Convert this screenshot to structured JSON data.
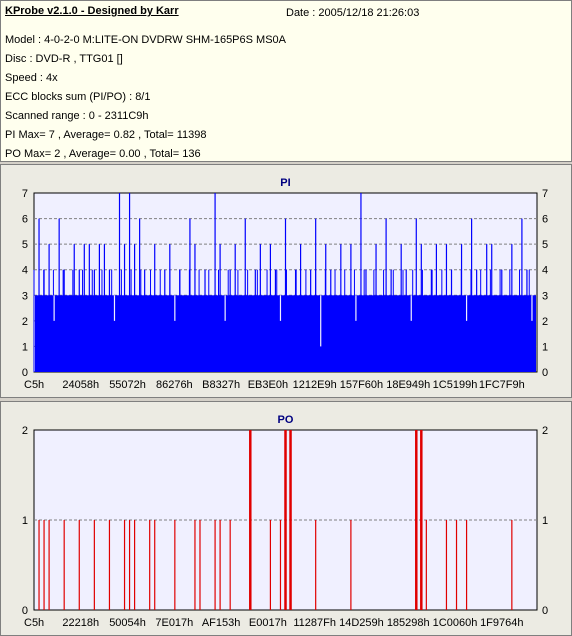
{
  "info": {
    "title": "KProbe v2.1.0 - Designed by Karr",
    "date": "Date : 2005/12/18 21:26:03",
    "lines": [
      "Model : 4-0-2-0 M:LITE-ON DVDRW SHM-165P6S MS0A",
      "Disc : DVD-R , TTG01 []",
      "Speed : 4x",
      "ECC blocks sum (PI/PO) : 8/1",
      "Scanned range : 0 - 2311C9h",
      "PI Max= 7 , Average= 0.82 , Total= 11398",
      "PO Max= 2 , Average= 0.00 , Total= 136"
    ]
  },
  "colors": {
    "pi": "#0000ff",
    "po": "#e00000",
    "plot_bg": "#f0f0ff",
    "grid": "#808080"
  },
  "chart_data": [
    {
      "type": "bar",
      "title": "PI",
      "ylim": [
        0,
        7
      ],
      "yticks": [
        0,
        1,
        2,
        3,
        4,
        5,
        6,
        7
      ],
      "xtick_labels": [
        "C5h",
        "24058h",
        "55072h",
        "86276h",
        "B8327h",
        "EB3E0h",
        "1212E9h",
        "157F60h",
        "18E949h",
        "1C5199h",
        "1FC7F9h"
      ],
      "baseline": 3,
      "spikes": [
        [
          0.01,
          6
        ],
        [
          0.02,
          4
        ],
        [
          0.03,
          5
        ],
        [
          0.05,
          6
        ],
        [
          0.06,
          4
        ],
        [
          0.08,
          5
        ],
        [
          0.09,
          4
        ],
        [
          0.1,
          5
        ],
        [
          0.11,
          5
        ],
        [
          0.12,
          4
        ],
        [
          0.13,
          5
        ],
        [
          0.14,
          5
        ],
        [
          0.15,
          4
        ],
        [
          0.17,
          7
        ],
        [
          0.18,
          5
        ],
        [
          0.19,
          7
        ],
        [
          0.2,
          5
        ],
        [
          0.21,
          6
        ],
        [
          0.22,
          4
        ],
        [
          0.24,
          5
        ],
        [
          0.26,
          4
        ],
        [
          0.27,
          5
        ],
        [
          0.29,
          4
        ],
        [
          0.31,
          6
        ],
        [
          0.32,
          5
        ],
        [
          0.34,
          4
        ],
        [
          0.36,
          7
        ],
        [
          0.37,
          5
        ],
        [
          0.39,
          4
        ],
        [
          0.4,
          5
        ],
        [
          0.42,
          6
        ],
        [
          0.44,
          4
        ],
        [
          0.45,
          5
        ],
        [
          0.47,
          5
        ],
        [
          0.48,
          4
        ],
        [
          0.5,
          6
        ],
        [
          0.52,
          4
        ],
        [
          0.53,
          5
        ],
        [
          0.55,
          4
        ],
        [
          0.56,
          6
        ],
        [
          0.58,
          5
        ],
        [
          0.59,
          4
        ],
        [
          0.61,
          5
        ],
        [
          0.63,
          5
        ],
        [
          0.65,
          7
        ],
        [
          0.66,
          4
        ],
        [
          0.68,
          5
        ],
        [
          0.7,
          6
        ],
        [
          0.71,
          4
        ],
        [
          0.73,
          5
        ],
        [
          0.74,
          4
        ],
        [
          0.76,
          6
        ],
        [
          0.77,
          5
        ],
        [
          0.79,
          4
        ],
        [
          0.8,
          5
        ],
        [
          0.82,
          5
        ],
        [
          0.83,
          4
        ],
        [
          0.85,
          5
        ],
        [
          0.87,
          6
        ],
        [
          0.88,
          4
        ],
        [
          0.9,
          5
        ],
        [
          0.91,
          5
        ],
        [
          0.93,
          4
        ],
        [
          0.95,
          5
        ],
        [
          0.97,
          6
        ],
        [
          0.98,
          4
        ]
      ],
      "dips": [
        [
          0.04,
          2
        ],
        [
          0.16,
          2
        ],
        [
          0.28,
          2
        ],
        [
          0.38,
          2
        ],
        [
          0.49,
          2
        ],
        [
          0.57,
          1
        ],
        [
          0.64,
          2
        ],
        [
          0.75,
          2
        ],
        [
          0.86,
          2
        ],
        [
          0.99,
          2
        ]
      ]
    },
    {
      "type": "bar",
      "title": "PO",
      "ylim": [
        0,
        2
      ],
      "yticks": [
        0,
        1,
        2
      ],
      "xtick_labels": [
        "C5h",
        "22218h",
        "50054h",
        "7E017h",
        "AF153h",
        "E0017h",
        "11287Fh",
        "14D259h",
        "185298h",
        "1C0060h",
        "1F9764h"
      ],
      "bars": [
        [
          0.01,
          1
        ],
        [
          0.02,
          1
        ],
        [
          0.03,
          1
        ],
        [
          0.06,
          1
        ],
        [
          0.09,
          1
        ],
        [
          0.12,
          1
        ],
        [
          0.15,
          1
        ],
        [
          0.18,
          1
        ],
        [
          0.19,
          1
        ],
        [
          0.2,
          1
        ],
        [
          0.23,
          1
        ],
        [
          0.24,
          1
        ],
        [
          0.28,
          1
        ],
        [
          0.32,
          1
        ],
        [
          0.33,
          1
        ],
        [
          0.36,
          1
        ],
        [
          0.37,
          1
        ],
        [
          0.39,
          1
        ],
        [
          0.43,
          2
        ],
        [
          0.47,
          1
        ],
        [
          0.49,
          1
        ],
        [
          0.5,
          2
        ],
        [
          0.51,
          2
        ],
        [
          0.56,
          1
        ],
        [
          0.63,
          1
        ],
        [
          0.76,
          2
        ],
        [
          0.77,
          2
        ],
        [
          0.78,
          1
        ],
        [
          0.82,
          1
        ],
        [
          0.84,
          1
        ],
        [
          0.86,
          1
        ],
        [
          0.95,
          1
        ]
      ]
    }
  ]
}
